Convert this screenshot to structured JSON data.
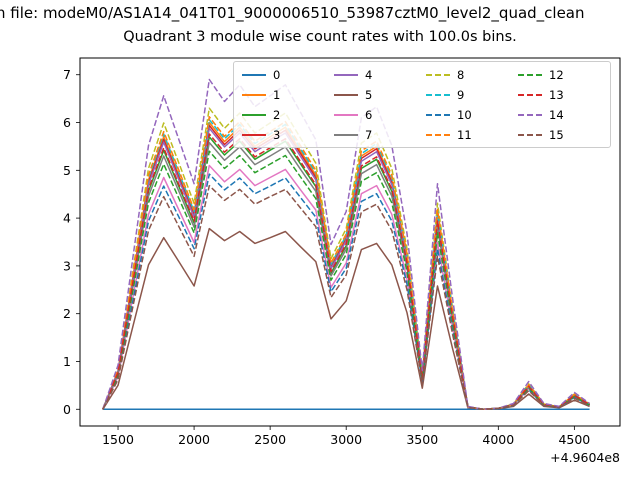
{
  "figure": {
    "suptitle": "n file: modeM0/AS1A14_041T01_9000006510_53987cztM0_level2_quad_clean",
    "title": "Quadrant 3 module wise count rates with 100.0s bins."
  },
  "chart_data": {
    "type": "line",
    "title": "Quadrant 3 module wise count rates with 100.0s bins.",
    "xlabel": "",
    "ylabel": "",
    "x_offset_label": "+4.9604e8",
    "xlim": [
      1250,
      4800
    ],
    "ylim": [
      -0.35,
      7.35
    ],
    "xticks": [
      1500,
      2000,
      2500,
      3000,
      3500,
      4000,
      4500
    ],
    "yticks": [
      0,
      1,
      2,
      3,
      4,
      5,
      6,
      7
    ],
    "grid": false,
    "legend_position": "upper center",
    "legend_columns": 4,
    "x": [
      1400,
      1500,
      1600,
      1700,
      1800,
      1900,
      2000,
      2100,
      2200,
      2300,
      2400,
      2500,
      2600,
      2700,
      2800,
      2900,
      3000,
      3100,
      3200,
      3300,
      3400,
      3500,
      3600,
      3700,
      3800,
      3900,
      4000,
      4100,
      4200,
      4300,
      4400,
      4500,
      4600
    ],
    "series": [
      {
        "name": "0",
        "color": "#1f77b4",
        "dash": false,
        "values": [
          0,
          0,
          0,
          0,
          0,
          0,
          0,
          0,
          0,
          0,
          0,
          0,
          0,
          0,
          0,
          0,
          0,
          0,
          0,
          0,
          0,
          0,
          0,
          0,
          0,
          0,
          0,
          0,
          0,
          0,
          0,
          0,
          0
        ]
      },
      {
        "name": "1",
        "color": "#ff7f0e",
        "dash": false,
        "values": [
          0,
          0.8,
          2.8,
          4.8,
          5.7,
          4.9,
          4.1,
          6.0,
          5.6,
          5.9,
          5.5,
          5.7,
          5.9,
          5.4,
          4.9,
          3.0,
          3.6,
          5.3,
          5.5,
          4.8,
          3.2,
          0.7,
          4.1,
          2.0,
          0.05,
          0,
          0.02,
          0.1,
          0.5,
          0.1,
          0.05,
          0.3,
          0.1
        ]
      },
      {
        "name": "2",
        "color": "#2ca02c",
        "dash": false,
        "values": [
          0,
          0.76,
          2.66,
          4.56,
          5.42,
          4.66,
          3.9,
          5.7,
          5.32,
          5.61,
          5.23,
          5.42,
          5.61,
          5.13,
          4.66,
          2.85,
          3.42,
          5.04,
          5.23,
          4.56,
          3.04,
          0.67,
          3.9,
          1.9,
          0.05,
          0,
          0.02,
          0.1,
          0.48,
          0.1,
          0.05,
          0.29,
          0.1
        ]
      },
      {
        "name": "3",
        "color": "#d62728",
        "dash": false,
        "values": [
          0,
          0.79,
          2.77,
          4.75,
          5.64,
          4.85,
          4.06,
          5.94,
          5.54,
          5.84,
          5.45,
          5.64,
          5.84,
          5.35,
          4.85,
          2.97,
          3.56,
          5.25,
          5.45,
          4.75,
          3.17,
          0.69,
          4.06,
          1.98,
          0.05,
          0,
          0.02,
          0.1,
          0.5,
          0.1,
          0.05,
          0.3,
          0.1
        ]
      },
      {
        "name": "4",
        "color": "#9467bd",
        "dash": false,
        "values": [
          0,
          0.78,
          2.74,
          4.7,
          5.59,
          4.8,
          4.02,
          5.88,
          5.49,
          5.78,
          5.39,
          5.59,
          5.78,
          5.29,
          4.8,
          2.94,
          3.53,
          5.19,
          5.39,
          4.7,
          3.14,
          0.69,
          4.02,
          1.96,
          0.05,
          0,
          0.02,
          0.1,
          0.49,
          0.1,
          0.05,
          0.29,
          0.1
        ]
      },
      {
        "name": "5",
        "color": "#8c564b",
        "dash": false,
        "values": [
          0,
          0.5,
          1.76,
          3.02,
          3.59,
          3.09,
          2.58,
          3.78,
          3.53,
          3.72,
          3.47,
          3.59,
          3.72,
          3.4,
          3.09,
          1.89,
          2.27,
          3.34,
          3.47,
          3.02,
          2.02,
          0.44,
          2.58,
          1.26,
          0.03,
          0,
          0.01,
          0.06,
          0.32,
          0.06,
          0.03,
          0.19,
          0.06
        ]
      },
      {
        "name": "6",
        "color": "#e377c2",
        "dash": false,
        "values": [
          0,
          0.68,
          2.38,
          4.08,
          4.85,
          4.17,
          3.49,
          5.1,
          4.76,
          5.02,
          4.68,
          4.85,
          5.02,
          4.59,
          4.17,
          2.55,
          3.06,
          4.51,
          4.68,
          4.08,
          2.72,
          0.6,
          3.49,
          1.7,
          0.04,
          0,
          0.02,
          0.09,
          0.43,
          0.09,
          0.04,
          0.26,
          0.09
        ]
      },
      {
        "name": "7",
        "color": "#7f7f7f",
        "dash": false,
        "values": [
          0,
          0.74,
          2.6,
          4.46,
          5.3,
          4.56,
          3.81,
          5.58,
          5.21,
          5.49,
          5.12,
          5.3,
          5.49,
          5.02,
          4.56,
          2.79,
          3.35,
          4.93,
          5.12,
          4.46,
          2.98,
          0.65,
          3.81,
          1.86,
          0.05,
          0,
          0.02,
          0.09,
          0.47,
          0.09,
          0.05,
          0.28,
          0.09
        ]
      },
      {
        "name": "8",
        "color": "#bcbd22",
        "dash": true,
        "values": [
          0,
          0.84,
          2.94,
          5.04,
          5.99,
          5.15,
          4.31,
          6.3,
          5.88,
          6.2,
          5.78,
          5.99,
          6.2,
          5.67,
          5.15,
          3.15,
          3.78,
          5.57,
          5.78,
          5.04,
          3.36,
          0.74,
          4.31,
          2.1,
          0.05,
          0,
          0.02,
          0.11,
          0.53,
          0.11,
          0.05,
          0.32,
          0.11
        ]
      },
      {
        "name": "9",
        "color": "#17becf",
        "dash": true,
        "values": [
          0,
          0.81,
          2.83,
          4.85,
          5.76,
          4.95,
          4.14,
          6.06,
          5.66,
          5.96,
          5.56,
          5.76,
          5.96,
          5.45,
          4.95,
          3.03,
          3.64,
          5.35,
          5.56,
          4.85,
          3.23,
          0.71,
          4.14,
          2.02,
          0.05,
          0,
          0.02,
          0.1,
          0.51,
          0.1,
          0.05,
          0.3,
          0.1
        ]
      },
      {
        "name": "10",
        "color": "#1f77b4",
        "dash": true,
        "values": [
          0,
          0.66,
          2.3,
          3.94,
          4.67,
          4.02,
          3.36,
          4.92,
          4.59,
          4.84,
          4.51,
          4.67,
          4.84,
          4.43,
          4.02,
          2.46,
          2.95,
          4.35,
          4.51,
          3.94,
          2.62,
          0.57,
          3.36,
          1.64,
          0.04,
          0,
          0.02,
          0.08,
          0.41,
          0.08,
          0.04,
          0.25,
          0.08
        ]
      },
      {
        "name": "11",
        "color": "#ff7f0e",
        "dash": true,
        "values": [
          0,
          0.82,
          2.86,
          4.9,
          5.81,
          5.0,
          4.18,
          6.12,
          5.71,
          6.02,
          5.61,
          5.81,
          6.02,
          5.51,
          5.0,
          3.06,
          3.67,
          5.41,
          5.61,
          4.9,
          3.26,
          0.71,
          4.18,
          2.04,
          0.05,
          0,
          0.02,
          0.1,
          0.51,
          0.1,
          0.05,
          0.31,
          0.1
        ]
      },
      {
        "name": "12",
        "color": "#2ca02c",
        "dash": true,
        "values": [
          0,
          0.72,
          2.52,
          4.32,
          5.13,
          4.41,
          3.69,
          5.4,
          5.04,
          5.31,
          4.95,
          5.13,
          5.31,
          4.86,
          4.41,
          2.7,
          3.24,
          4.77,
          4.95,
          4.32,
          2.88,
          0.63,
          3.69,
          1.8,
          0.05,
          0,
          0.02,
          0.09,
          0.45,
          0.09,
          0.05,
          0.27,
          0.09
        ]
      },
      {
        "name": "13",
        "color": "#d62728",
        "dash": true,
        "values": [
          0,
          0.77,
          2.69,
          4.61,
          5.47,
          4.7,
          3.94,
          5.76,
          5.38,
          5.66,
          5.28,
          5.47,
          5.66,
          5.18,
          4.7,
          2.88,
          3.46,
          5.09,
          5.28,
          4.61,
          3.07,
          0.67,
          3.94,
          1.92,
          0.05,
          0,
          0.02,
          0.1,
          0.48,
          0.1,
          0.05,
          0.29,
          0.1
        ]
      },
      {
        "name": "14",
        "color": "#9467bd",
        "dash": true,
        "values": [
          0,
          0.92,
          3.22,
          5.52,
          6.56,
          5.64,
          4.72,
          6.9,
          6.44,
          6.79,
          6.33,
          6.56,
          6.79,
          6.21,
          5.64,
          3.45,
          4.14,
          6.1,
          6.33,
          5.52,
          3.68,
          0.81,
          4.72,
          2.3,
          0.06,
          0,
          0.02,
          0.12,
          0.58,
          0.12,
          0.06,
          0.35,
          0.12
        ]
      },
      {
        "name": "15",
        "color": "#8c564b",
        "dash": true,
        "values": [
          0,
          0.62,
          2.18,
          3.74,
          4.45,
          3.82,
          3.2,
          4.68,
          4.37,
          4.6,
          4.29,
          4.45,
          4.6,
          4.21,
          3.82,
          2.34,
          2.81,
          4.13,
          4.29,
          3.74,
          2.5,
          0.55,
          3.2,
          1.56,
          0.04,
          0,
          0.02,
          0.08,
          0.39,
          0.08,
          0.04,
          0.23,
          0.08
        ]
      }
    ]
  }
}
